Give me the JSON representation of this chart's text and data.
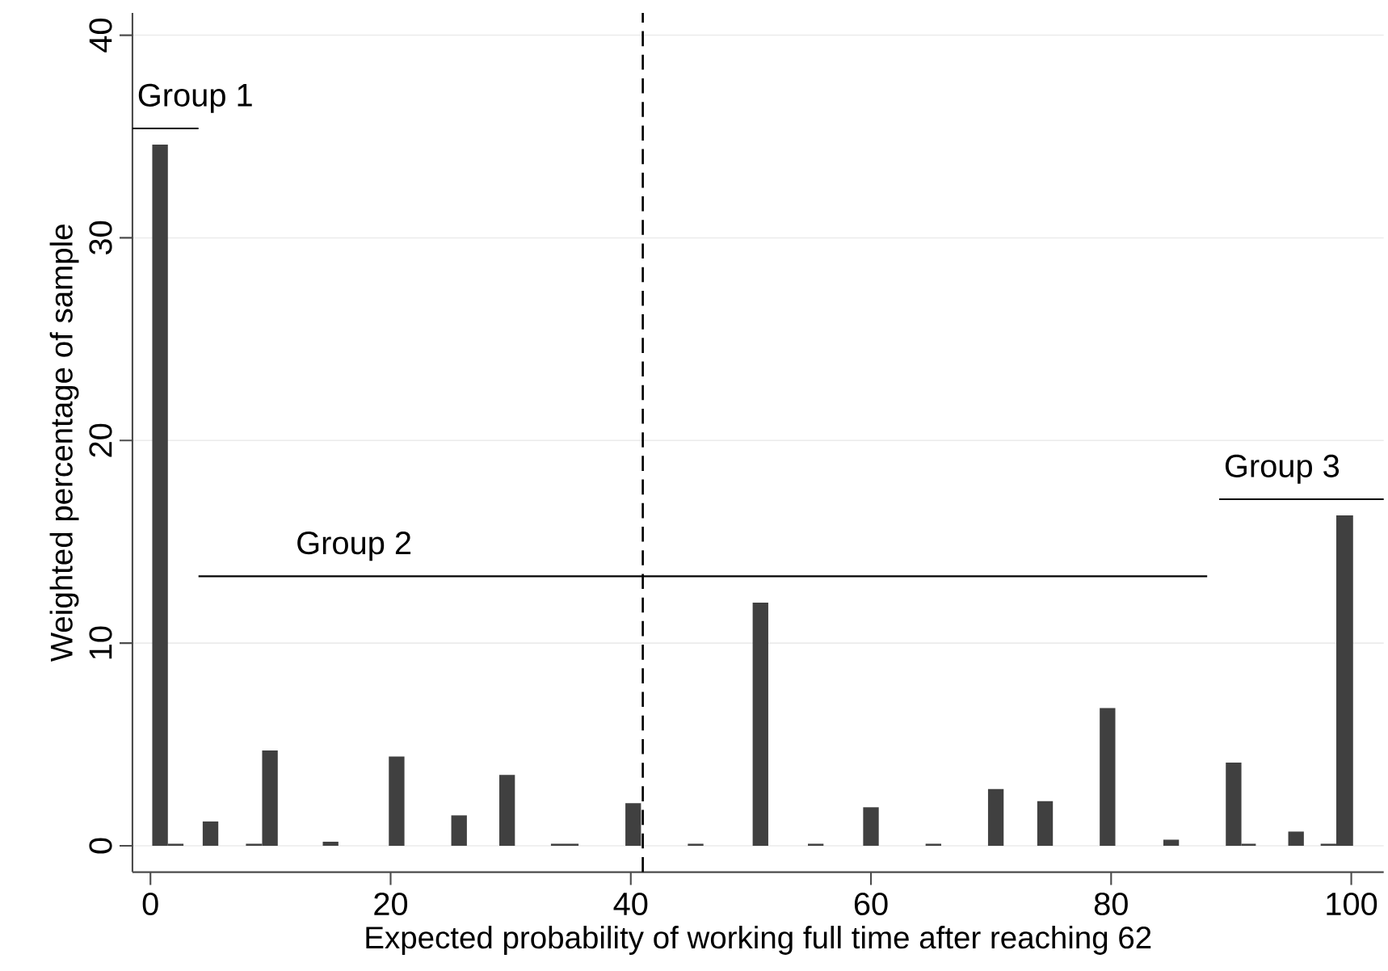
{
  "chart_data": {
    "type": "histogram",
    "xlabel": "Expected probability of working full time after reaching 62",
    "ylabel": "Weighted percentage of sample",
    "xlim": [
      -1.5,
      102.7
    ],
    "ylim": [
      -1.3,
      41.1
    ],
    "xticks": [
      0,
      20,
      40,
      60,
      80,
      100
    ],
    "yticks": [
      0,
      10,
      20,
      30,
      40
    ],
    "grid": "y",
    "color": "#404040",
    "bins": [
      0.15,
      1.45,
      2.75,
      4.35,
      5.65,
      7.95,
      9.3,
      10.6,
      14.35,
      15.65,
      19.85,
      21.15,
      25.05,
      26.35,
      29.05,
      30.35,
      33.35,
      34.5,
      35.65,
      39.55,
      40.85,
      44.75,
      46.05,
      50.15,
      51.45,
      54.75,
      56.05,
      59.35,
      60.65,
      64.55,
      65.85,
      69.75,
      71.05,
      73.85,
      75.15,
      79.05,
      80.35,
      84.35,
      85.65,
      89.55,
      90.85,
      92.05,
      94.75,
      96.05,
      97.45,
      98.75,
      100.15
    ],
    "values": [
      34.6,
      0.1,
      0,
      1.2,
      0,
      0.1,
      4.7,
      0,
      0.2,
      0,
      4.4,
      0,
      1.5,
      0,
      3.5,
      0,
      0.1,
      0.1,
      0,
      2.1,
      0,
      0.1,
      0,
      12.0,
      0,
      0.1,
      0,
      1.9,
      0,
      0.1,
      0,
      2.8,
      0,
      2.2,
      0,
      6.8,
      0,
      0.3,
      0,
      4.1,
      0.1,
      0,
      0.7,
      0,
      0.1,
      16.3
    ],
    "series": [
      {
        "type": "line",
        "color": "#000000",
        "x": [
          -1.5,
          4
        ],
        "values": [
          35.4,
          35.4
        ]
      },
      {
        "type": "line",
        "color": "#000000",
        "x": [
          4,
          88
        ],
        "values": [
          13.3,
          13.3
        ]
      },
      {
        "type": "line",
        "color": "#000000",
        "x": [
          89,
          102.7
        ],
        "values": [
          17.1,
          17.1
        ]
      }
    ],
    "ref_lines": [
      {
        "axis": "x",
        "value": 41,
        "line_style": "dashed",
        "color": "#000000"
      }
    ],
    "annotations": [
      "Group 1",
      "Group 2",
      "Group 3"
    ]
  }
}
